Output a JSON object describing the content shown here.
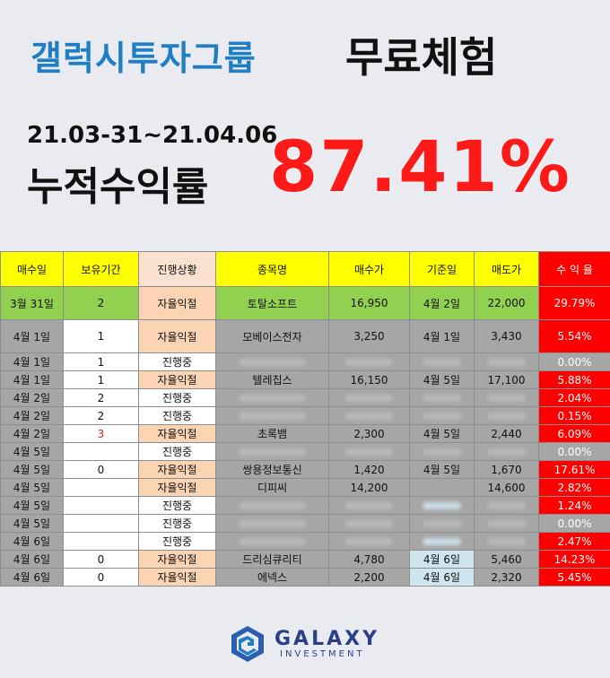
{
  "header": {
    "title_blue": "갤럭시투자그룹",
    "title_black": "무료체험",
    "date_range": "21.03-31~21.04.06",
    "label": "누적수익률",
    "big_percent": "87.41%"
  },
  "table": {
    "columns": [
      "매수일",
      "보유기간",
      "진행상황",
      "종목명",
      "매수가",
      "기준일",
      "매도가",
      "수 익 율"
    ],
    "rows": [
      {
        "buy_date": "3월 31일",
        "period": "2",
        "status": "자율익절",
        "name": "토탈소프트",
        "buy_price": "16,950",
        "ref_date": "4월 2일",
        "sell_price": "22,000",
        "return": "29.79%"
      },
      {
        "buy_date": "4월 1일",
        "period": "1",
        "status": "자율익절",
        "name": "모베이스전자",
        "buy_price": "3,250",
        "ref_date": "4월 1일",
        "sell_price": "3,430",
        "return": "5.54%"
      },
      {
        "buy_date": "4월 1일",
        "period": "1",
        "status": "진행중",
        "name": "",
        "buy_price": "",
        "ref_date": "",
        "sell_price": "",
        "return": "0.00%"
      },
      {
        "buy_date": "4월 1일",
        "period": "1",
        "status": "자율익절",
        "name": "텔레칩스",
        "buy_price": "16,150",
        "ref_date": "4월 5일",
        "sell_price": "17,100",
        "return": "5.88%"
      },
      {
        "buy_date": "4월 2일",
        "period": "2",
        "status": "진행중",
        "name": "",
        "buy_price": "",
        "ref_date": "",
        "sell_price": "",
        "return": "2.04%"
      },
      {
        "buy_date": "4월 2일",
        "period": "2",
        "status": "진행중",
        "name": "",
        "buy_price": "",
        "ref_date": "",
        "sell_price": "",
        "return": "0.15%"
      },
      {
        "buy_date": "4월 2일",
        "period": "3",
        "status": "자율익절",
        "name": "초록뱀",
        "buy_price": "2,300",
        "ref_date": "4월 5일",
        "sell_price": "2,440",
        "return": "6.09%"
      },
      {
        "buy_date": "4월 5일",
        "period": "",
        "status": "진행중",
        "name": "",
        "buy_price": "",
        "ref_date": "",
        "sell_price": "",
        "return": "0.00%"
      },
      {
        "buy_date": "4월 5일",
        "period": "0",
        "status": "자율익절",
        "name": "쌍용정보통신",
        "buy_price": "1,420",
        "ref_date": "4월 5일",
        "sell_price": "1,670",
        "return": "17.61%"
      },
      {
        "buy_date": "4월 5일",
        "period": "",
        "status": "자율익절",
        "name": "디피씨",
        "buy_price": "14,200",
        "ref_date": "",
        "sell_price": "14,600",
        "return": "2.82%"
      },
      {
        "buy_date": "4월 5일",
        "period": "",
        "status": "진행중",
        "name": "",
        "buy_price": "",
        "ref_date": "",
        "sell_price": "",
        "return": "1.24%"
      },
      {
        "buy_date": "4월 5일",
        "period": "",
        "status": "진행중",
        "name": "",
        "buy_price": "",
        "ref_date": "",
        "sell_price": "",
        "return": "0.00%"
      },
      {
        "buy_date": "4월 6일",
        "period": "",
        "status": "진행중",
        "name": "",
        "buy_price": "",
        "ref_date": "",
        "sell_price": "",
        "return": "2.47%"
      },
      {
        "buy_date": "4월 6일",
        "period": "0",
        "status": "자율익절",
        "name": "드리심큐리티",
        "buy_price": "4,780",
        "ref_date": "4월 6일",
        "sell_price": "5,460",
        "return": "14.23%"
      },
      {
        "buy_date": "4월 6일",
        "period": "0",
        "status": "자율익절",
        "name": "에넥스",
        "buy_price": "2,200",
        "ref_date": "4월 6일",
        "sell_price": "2,320",
        "return": "5.45%"
      }
    ]
  },
  "footer": {
    "brand": "GALAXY",
    "sub": "INVESTMENT"
  },
  "colors": {
    "accent_blue": "#1e7fc6",
    "accent_red": "#ff1a1a",
    "header_yellow": "#ffff00",
    "profit_red": "#ff0000",
    "row_green": "#92d050"
  }
}
